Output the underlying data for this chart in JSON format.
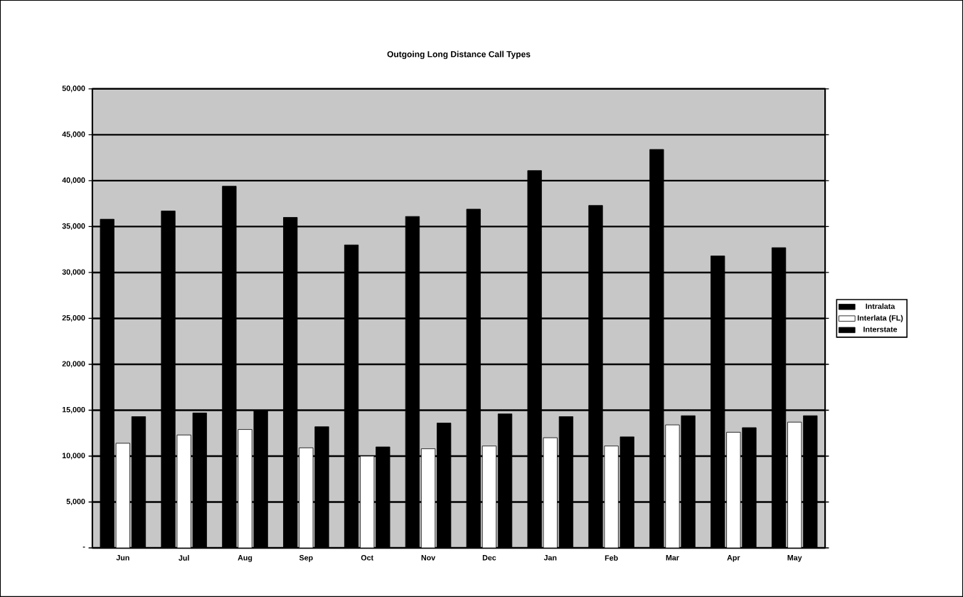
{
  "chart_data": {
    "type": "bar",
    "title": "Outgoing Long Distance Call Types",
    "categories": [
      "Jun",
      "Jul",
      "Aug",
      "Sep",
      "Oct",
      "Nov",
      "Dec",
      "Jan",
      "Feb",
      "Mar",
      "Apr",
      "May"
    ],
    "series": [
      {
        "name": "Intralata",
        "color": "#000000",
        "values": [
          35800,
          36700,
          39400,
          36000,
          33000,
          36100,
          36900,
          41100,
          37300,
          43400,
          31800,
          32700
        ]
      },
      {
        "name": "Interlata (FL)",
        "color": "#ffffff",
        "values": [
          11400,
          12300,
          12900,
          10900,
          10000,
          10800,
          11100,
          12000,
          11100,
          13400,
          12600,
          13700
        ]
      },
      {
        "name": "Interstate",
        "color": "#000000",
        "values": [
          14300,
          14700,
          15000,
          13200,
          11000,
          13600,
          14600,
          14300,
          12100,
          14400,
          13100,
          14400
        ]
      }
    ],
    "ylim": [
      0,
      50000
    ],
    "yticks": [
      {
        "value": 0,
        "label": "-"
      },
      {
        "value": 5000,
        "label": "5,000"
      },
      {
        "value": 10000,
        "label": "10,000"
      },
      {
        "value": 15000,
        "label": "15,000"
      },
      {
        "value": 20000,
        "label": "20,000"
      },
      {
        "value": 25000,
        "label": "25,000"
      },
      {
        "value": 30000,
        "label": "30,000"
      },
      {
        "value": 35000,
        "label": "35,000"
      },
      {
        "value": 40000,
        "label": "40,000"
      },
      {
        "value": 45000,
        "label": "45,000"
      },
      {
        "value": 50000,
        "label": "50,000"
      }
    ],
    "grid": "y",
    "legend": "right"
  }
}
